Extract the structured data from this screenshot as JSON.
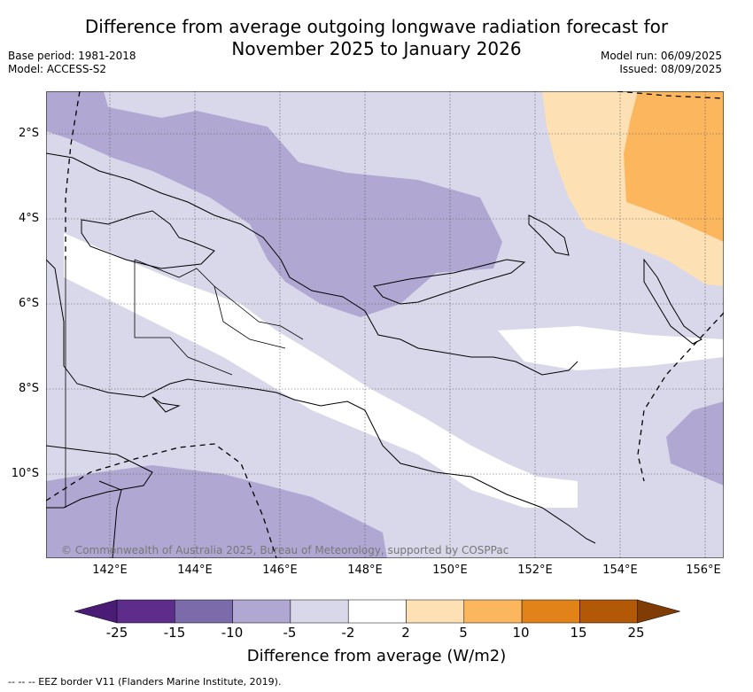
{
  "title": "Difference from average outgoing longwave radiation forecast for\nNovember 2025 to January 2026",
  "meta_left": [
    "Base period: 1981-2018",
    "Model: ACCESS-S2"
  ],
  "meta_right": [
    "Model run: 06/09/2025",
    "Issued: 08/09/2025"
  ],
  "lat_ticks": [
    "2°S",
    "4°S",
    "6°S",
    "8°S",
    "10°S"
  ],
  "lon_ticks": [
    "142°E",
    "144°E",
    "146°E",
    "148°E",
    "150°E",
    "152°E",
    "154°E",
    "156°E"
  ],
  "copyright": "© Commonwealth of Australia 2025, Bureau of Meteorology, supported by COSPPac",
  "colorbar": {
    "labels": [
      "-25",
      "-15",
      "-10",
      "-5",
      "-2",
      "2",
      "5",
      "10",
      "15",
      "25"
    ],
    "colors": [
      "#4a1c75",
      "#5e2d8c",
      "#7b6bab",
      "#b0a8d2",
      "#d8d8ea",
      "#ffffff",
      "#fde0b4",
      "#fcb65e",
      "#e18319",
      "#b25806",
      "#7f3d05"
    ],
    "title": "Difference from average (W/m2)"
  },
  "eez_note": "-- -- -- EEZ border V11 (Flanders Marine Institute, 2019)."
}
